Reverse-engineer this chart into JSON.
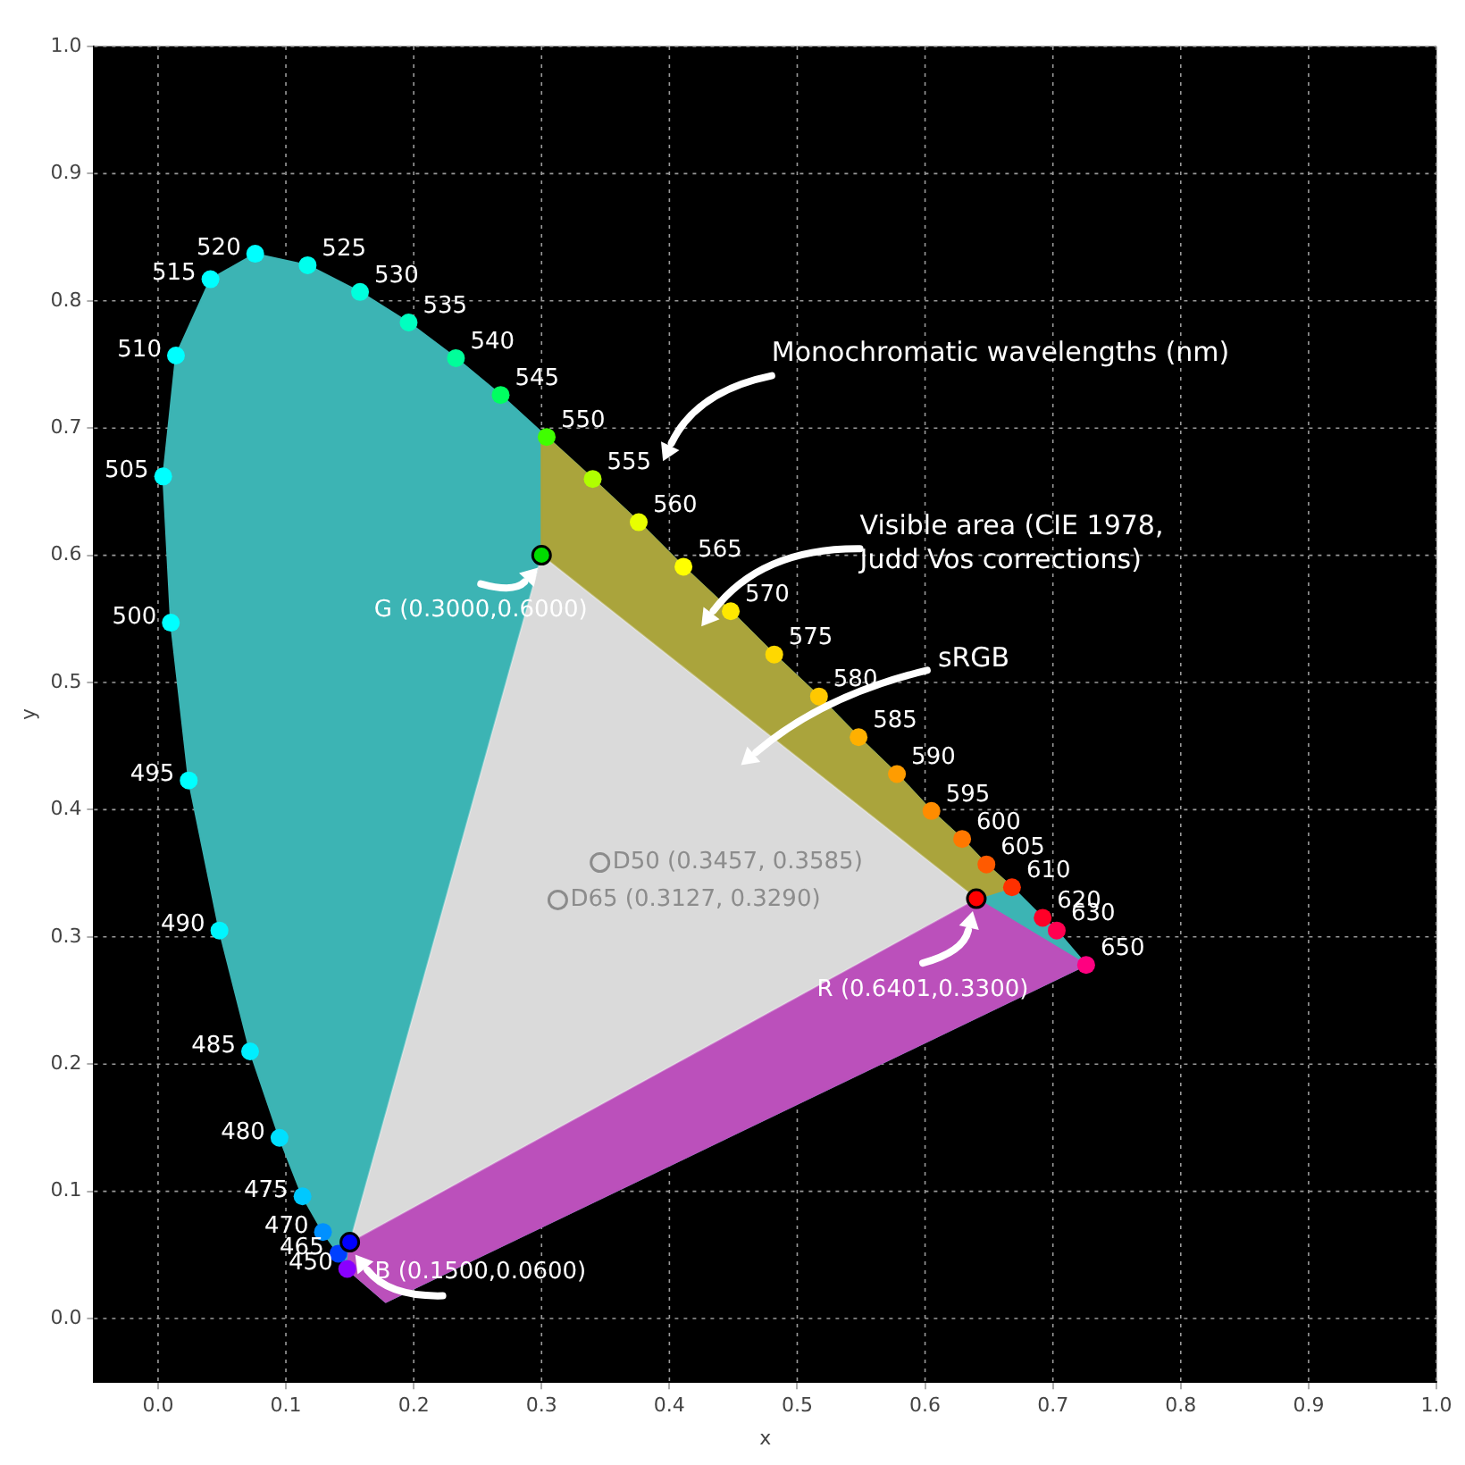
{
  "chart_data": {
    "type": "scatter",
    "xlabel": "x",
    "ylabel": "y",
    "xlim": [
      -0.05,
      1.0
    ],
    "ylim": [
      -0.05,
      1.0
    ],
    "xticks": [
      {
        "value": 0,
        "label": "0.0"
      },
      0.1,
      0.2,
      0.3,
      0.4,
      0.5,
      0.6,
      0.7,
      0.8,
      0.9,
      {
        "value": 1,
        "label": "1.0"
      }
    ],
    "yticks": [
      {
        "value": 0,
        "label": "0.0"
      },
      0.1,
      0.2,
      0.3,
      0.4,
      0.5,
      0.6,
      0.7,
      0.8,
      0.9,
      {
        "value": 1,
        "label": "1.0"
      }
    ],
    "grid": true,
    "legend": false,
    "series": [
      {
        "type": "area",
        "color": "#3cb4b4",
        "x": [
          0.148,
          0.141,
          0.129,
          0.113,
          0.095,
          0.072,
          0.048,
          0.024,
          0.01,
          0.004,
          0.014,
          0.041,
          0.076,
          0.117,
          0.158,
          0.196,
          0.233,
          0.268,
          0.304,
          0.34,
          0.376,
          0.411,
          0.448,
          0.482,
          0.517,
          0.548,
          0.578,
          0.605,
          0.629,
          0.648,
          0.668,
          0.692,
          0.703,
          0.726,
          0.178
        ],
        "values": [
          0.039,
          0.051,
          0.068,
          0.096,
          0.142,
          0.21,
          0.305,
          0.423,
          0.547,
          0.662,
          0.757,
          0.817,
          0.837,
          0.828,
          0.807,
          0.783,
          0.755,
          0.726,
          0.693,
          0.66,
          0.626,
          0.591,
          0.556,
          0.522,
          0.489,
          0.457,
          0.428,
          0.399,
          0.377,
          0.357,
          0.339,
          0.315,
          0.305,
          0.278,
          0.013
        ]
      },
      {
        "type": "area",
        "color": "#aaa43c",
        "x": [
          0.3,
          0.3,
          0.304,
          0.34,
          0.376,
          0.411,
          0.448,
          0.482,
          0.517,
          0.548,
          0.578,
          0.605,
          0.629,
          0.648,
          0.668,
          0.6401
        ],
        "values": [
          0.6,
          0.697,
          0.693,
          0.66,
          0.626,
          0.591,
          0.556,
          0.522,
          0.489,
          0.457,
          0.428,
          0.399,
          0.377,
          0.357,
          0.339,
          0.33
        ]
      },
      {
        "type": "area",
        "color": "#bb50bb",
        "x": [
          0.148,
          0.15,
          0.6401,
          0.726,
          0.178
        ],
        "values": [
          0.039,
          0.06,
          0.33,
          0.278,
          0.013
        ]
      },
      {
        "type": "area",
        "colors": [
          "#ff0000",
          "#00ff00",
          "#0000ff"
        ],
        "x": [
          0.6401,
          0.3,
          0.15
        ],
        "values": [
          0.33,
          0.6,
          0.06
        ]
      },
      {
        "x": [
          0.148,
          0.141,
          0.129,
          0.113,
          0.095,
          0.072,
          0.048,
          0.024,
          0.01,
          0.004,
          0.014,
          0.041,
          0.076,
          0.117,
          0.158,
          0.196,
          0.233,
          0.268,
          0.304,
          0.34,
          0.376,
          0.411,
          0.448,
          0.482,
          0.517,
          0.548,
          0.578,
          0.605,
          0.629,
          0.648,
          0.668,
          0.692,
          0.703,
          0.726
        ],
        "values": [
          0.039,
          0.051,
          0.068,
          0.096,
          0.142,
          0.21,
          0.305,
          0.423,
          0.547,
          0.662,
          0.757,
          0.817,
          0.837,
          0.828,
          0.807,
          0.783,
          0.755,
          0.726,
          0.693,
          0.66,
          0.626,
          0.591,
          0.556,
          0.522,
          0.489,
          0.457,
          0.428,
          0.399,
          0.377,
          0.357,
          0.339,
          0.315,
          0.305,
          0.278
        ],
        "colors": [
          "#8a00ff",
          "#0040ff",
          "#0090ff",
          "#00c8ff",
          "#00e0ff",
          "#00eeff",
          "#00f5ff",
          "#00ffff",
          "#00ffff",
          "#00ffff",
          "#00ffff",
          "#00ffff",
          "#00ffff",
          "#00ffee",
          "#00ffdd",
          "#00ffc0",
          "#00ff9a",
          "#00ff60",
          "#40ff00",
          "#b0ff00",
          "#e8ff00",
          "#ffff00",
          "#ffe800",
          "#ffd800",
          "#ffc800",
          "#ffb000",
          "#ff9c00",
          "#ff8c00",
          "#ff7800",
          "#ff5a00",
          "#ff3000",
          "#ff0028",
          "#ff0050",
          "#ff0080"
        ]
      },
      {
        "x": [
          0.3,
          0.6401,
          0.15
        ],
        "values": [
          0.6,
          0.33,
          0.06
        ],
        "colors": [
          "#00dd00",
          "#ff0000",
          "#0000ff"
        ],
        "value_labels": [
          "G (0.3000,0.6000)",
          "R (0.6401,0.3300)",
          "B (0.1500,0.0600)"
        ]
      },
      {
        "x": [
          0.3457,
          0.3127
        ],
        "values": [
          0.3585,
          0.329
        ],
        "color": "#8c8c8c",
        "value_labels": [
          "D50 (0.3457, 0.3585)",
          "D65 (0.3127, 0.3290)"
        ]
      }
    ],
    "annotations": [
      {
        "text": "450",
        "x": 0.148,
        "y": 0.039
      },
      {
        "text": "465",
        "x": 0.141,
        "y": 0.051
      },
      {
        "text": "470",
        "x": 0.129,
        "y": 0.068
      },
      {
        "text": "475",
        "x": 0.113,
        "y": 0.096
      },
      {
        "text": "480",
        "x": 0.095,
        "y": 0.142
      },
      {
        "text": "485",
        "x": 0.072,
        "y": 0.21
      },
      {
        "text": "490",
        "x": 0.048,
        "y": 0.305
      },
      {
        "text": "495",
        "x": 0.024,
        "y": 0.423
      },
      {
        "text": "500",
        "x": 0.01,
        "y": 0.547
      },
      {
        "text": "505",
        "x": 0.004,
        "y": 0.662
      },
      {
        "text": "510",
        "x": 0.014,
        "y": 0.757
      },
      {
        "text": "515",
        "x": 0.041,
        "y": 0.817
      },
      {
        "text": "520",
        "x": 0.076,
        "y": 0.837
      },
      {
        "text": "525",
        "x": 0.117,
        "y": 0.828
      },
      {
        "text": "530",
        "x": 0.158,
        "y": 0.807
      },
      {
        "text": "535",
        "x": 0.196,
        "y": 0.783
      },
      {
        "text": "540",
        "x": 0.233,
        "y": 0.755
      },
      {
        "text": "545",
        "x": 0.268,
        "y": 0.726
      },
      {
        "text": "550",
        "x": 0.304,
        "y": 0.693
      },
      {
        "text": "555",
        "x": 0.34,
        "y": 0.66
      },
      {
        "text": "560",
        "x": 0.376,
        "y": 0.626
      },
      {
        "text": "565",
        "x": 0.411,
        "y": 0.591
      },
      {
        "text": "570",
        "x": 0.448,
        "y": 0.556
      },
      {
        "text": "575",
        "x": 0.482,
        "y": 0.522
      },
      {
        "text": "580",
        "x": 0.517,
        "y": 0.489
      },
      {
        "text": "585",
        "x": 0.548,
        "y": 0.457
      },
      {
        "text": "590",
        "x": 0.578,
        "y": 0.428
      },
      {
        "text": "595",
        "x": 0.605,
        "y": 0.399
      },
      {
        "text": "600",
        "x": 0.629,
        "y": 0.377
      },
      {
        "text": "605",
        "x": 0.648,
        "y": 0.357
      },
      {
        "text": "610",
        "x": 0.668,
        "y": 0.339
      },
      {
        "text": "620",
        "x": 0.692,
        "y": 0.315
      },
      {
        "text": "630",
        "x": 0.703,
        "y": 0.305
      },
      {
        "text": "650",
        "x": 0.726,
        "y": 0.278
      },
      "Monochromatic wavelengths (nm)",
      "Visible area (CIE 1978,\nJudd Vos corrections)",
      "sRGB"
    ]
  }
}
